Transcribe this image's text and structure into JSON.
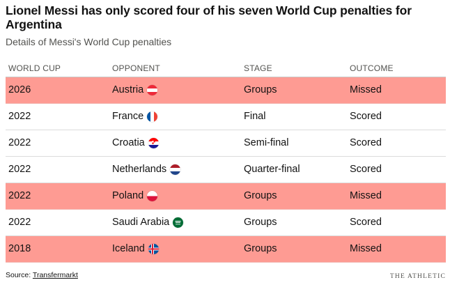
{
  "title": "Lionel Messi has only scored four of his seven World Cup penalties for Argentina",
  "subtitle": "Details of Messi's World Cup penalties",
  "columns": [
    "WORLD CUP",
    "OPPONENT",
    "STAGE",
    "OUTCOME"
  ],
  "rows": [
    {
      "year": "2026",
      "opponent": "Austria",
      "flag": "austria-flag",
      "stage": "Groups",
      "outcome": "Missed"
    },
    {
      "year": "2022",
      "opponent": "France",
      "flag": "france-flag",
      "stage": "Final",
      "outcome": "Scored"
    },
    {
      "year": "2022",
      "opponent": "Croatia",
      "flag": "croatia-flag",
      "stage": "Semi-final",
      "outcome": "Scored"
    },
    {
      "year": "2022",
      "opponent": "Netherlands",
      "flag": "netherlands-flag",
      "stage": "Quarter-final",
      "outcome": "Scored"
    },
    {
      "year": "2022",
      "opponent": "Poland",
      "flag": "poland-flag",
      "stage": "Groups",
      "outcome": "Missed"
    },
    {
      "year": "2022",
      "opponent": "Saudi Arabia",
      "flag": "saudi-arabia-flag",
      "stage": "Groups",
      "outcome": "Scored"
    },
    {
      "year": "2018",
      "opponent": "Iceland",
      "flag": "iceland-flag",
      "stage": "Groups",
      "outcome": "Missed"
    }
  ],
  "source": {
    "label": "Source:",
    "link_text": "Transfermarkt"
  },
  "brand": "THE ATHLETIC",
  "colors": {
    "missed_row": "#fe9b93",
    "text": "#121212",
    "muted": "#52524f"
  }
}
